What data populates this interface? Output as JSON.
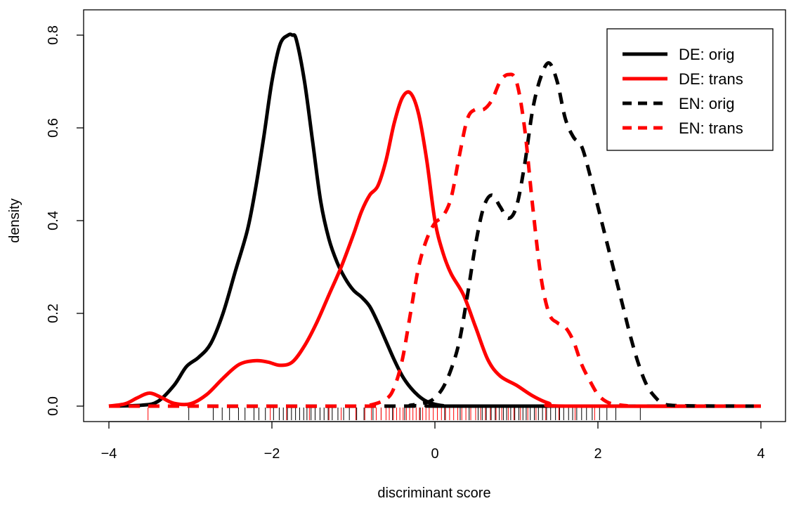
{
  "chart_data": {
    "type": "line",
    "title": "",
    "xlabel": "discriminant score",
    "ylabel": "density",
    "xlim": [
      -4,
      4
    ],
    "ylim": [
      0,
      0.8
    ],
    "xticks": [
      "−4",
      "−2",
      "0",
      "2",
      "4"
    ],
    "xtick_values": [
      -4,
      -2,
      0,
      2,
      4
    ],
    "yticks": [
      "0.0",
      "0.2",
      "0.4",
      "0.6",
      "0.8"
    ],
    "ytick_values": [
      0,
      0.2,
      0.4,
      0.6,
      0.8
    ],
    "grid": false,
    "legend_position": "top-right",
    "colors": {
      "black": "#000000",
      "red": "#ff0000"
    },
    "series": [
      {
        "name": "DE: orig",
        "color": "#000000",
        "dash": "solid",
        "x": [
          -4.0,
          -3.6,
          -3.4,
          -3.2,
          -3.05,
          -2.9,
          -2.75,
          -2.6,
          -2.45,
          -2.3,
          -2.2,
          -2.1,
          -2.0,
          -1.9,
          -1.8,
          -1.75,
          -1.7,
          -1.6,
          -1.5,
          -1.4,
          -1.3,
          -1.2,
          -1.1,
          -1.0,
          -0.9,
          -0.8,
          -0.7,
          -0.6,
          -0.5,
          -0.4,
          -0.3,
          -0.2,
          -0.1,
          0.0,
          0.1,
          0.2,
          4.0
        ],
        "y": [
          0.0,
          0.002,
          0.01,
          0.045,
          0.085,
          0.105,
          0.135,
          0.2,
          0.29,
          0.38,
          0.47,
          0.58,
          0.7,
          0.78,
          0.8,
          0.8,
          0.79,
          0.7,
          0.57,
          0.44,
          0.36,
          0.31,
          0.275,
          0.25,
          0.235,
          0.215,
          0.18,
          0.14,
          0.1,
          0.065,
          0.04,
          0.022,
          0.01,
          0.004,
          0.001,
          0.0,
          0.0
        ]
      },
      {
        "name": "DE: trans",
        "color": "#ff0000",
        "dash": "solid",
        "x": [
          -4.0,
          -3.8,
          -3.65,
          -3.5,
          -3.35,
          -3.2,
          -3.0,
          -2.8,
          -2.6,
          -2.4,
          -2.2,
          -2.05,
          -1.9,
          -1.75,
          -1.6,
          -1.45,
          -1.3,
          -1.15,
          -1.0,
          -0.9,
          -0.8,
          -0.7,
          -0.6,
          -0.5,
          -0.4,
          -0.3,
          -0.2,
          -0.1,
          0.0,
          0.1,
          0.2,
          0.35,
          0.5,
          0.65,
          0.8,
          1.0,
          1.2,
          1.4,
          1.6,
          4.0
        ],
        "y": [
          0.0,
          0.005,
          0.018,
          0.028,
          0.018,
          0.006,
          0.005,
          0.025,
          0.06,
          0.09,
          0.098,
          0.095,
          0.088,
          0.095,
          0.13,
          0.18,
          0.24,
          0.3,
          0.37,
          0.42,
          0.455,
          0.475,
          0.53,
          0.61,
          0.665,
          0.675,
          0.63,
          0.53,
          0.4,
          0.33,
          0.285,
          0.24,
          0.17,
          0.1,
          0.065,
          0.045,
          0.022,
          0.006,
          0.0,
          0.0
        ]
      },
      {
        "name": "EN: orig",
        "color": "#000000",
        "dash": "dashed",
        "x": [
          -4.0,
          -0.5,
          -0.3,
          -0.1,
          0.0,
          0.1,
          0.2,
          0.3,
          0.4,
          0.5,
          0.6,
          0.7,
          0.8,
          0.9,
          1.0,
          1.1,
          1.2,
          1.3,
          1.4,
          1.5,
          1.6,
          1.7,
          1.8,
          1.9,
          2.0,
          2.1,
          2.2,
          2.3,
          2.4,
          2.5,
          2.6,
          2.7,
          2.8,
          3.0,
          4.0
        ],
        "y": [
          0.0,
          0.0,
          0.002,
          0.008,
          0.018,
          0.04,
          0.08,
          0.14,
          0.24,
          0.35,
          0.43,
          0.455,
          0.43,
          0.405,
          0.43,
          0.52,
          0.64,
          0.71,
          0.74,
          0.7,
          0.62,
          0.58,
          0.56,
          0.5,
          0.43,
          0.36,
          0.29,
          0.22,
          0.15,
          0.09,
          0.045,
          0.02,
          0.006,
          0.001,
          0.0
        ]
      },
      {
        "name": "EN: trans",
        "color": "#ff0000",
        "dash": "dashed",
        "x": [
          -4.0,
          -1.0,
          -0.8,
          -0.6,
          -0.5,
          -0.4,
          -0.3,
          -0.2,
          -0.1,
          0.0,
          0.1,
          0.2,
          0.3,
          0.4,
          0.5,
          0.6,
          0.7,
          0.8,
          0.9,
          1.0,
          1.1,
          1.2,
          1.3,
          1.4,
          1.5,
          1.6,
          1.7,
          1.8,
          1.9,
          2.0,
          2.1,
          2.2,
          2.35,
          2.5,
          4.0
        ],
        "y": [
          0.0,
          0.0,
          0.002,
          0.015,
          0.04,
          0.1,
          0.2,
          0.3,
          0.36,
          0.395,
          0.41,
          0.45,
          0.54,
          0.62,
          0.64,
          0.64,
          0.66,
          0.7,
          0.715,
          0.7,
          0.6,
          0.43,
          0.28,
          0.2,
          0.18,
          0.17,
          0.14,
          0.09,
          0.055,
          0.025,
          0.01,
          0.004,
          0.001,
          0.0,
          0.0
        ]
      }
    ],
    "rug": {
      "black": [
        -3.02,
        -2.72,
        -2.61,
        -2.52,
        -2.41,
        -2.33,
        -2.22,
        -2.16,
        -2.08,
        -1.98,
        -1.91,
        -1.86,
        -1.81,
        -1.76,
        -1.71,
        -1.66,
        -1.61,
        -1.57,
        -1.52,
        -1.47,
        -1.41,
        -1.36,
        -1.31,
        -1.26,
        -1.19,
        -1.12,
        -1.05,
        -0.96,
        -0.87,
        -0.76,
        -0.66,
        -0.52,
        -0.37,
        -0.18,
        0.12,
        0.31,
        0.42,
        0.53,
        0.58,
        0.63,
        0.69,
        0.74,
        0.79,
        0.84,
        0.88,
        0.93,
        0.98,
        1.03,
        1.08,
        1.12,
        1.17,
        1.22,
        1.27,
        1.32,
        1.37,
        1.42,
        1.48,
        1.53,
        1.58,
        1.64,
        1.69,
        1.74,
        1.8,
        1.86,
        1.93,
        2.02,
        2.11,
        2.22,
        2.52
      ],
      "red": [
        -3.52,
        -2.02,
        -1.82,
        -1.54,
        -1.3,
        -1.15,
        -0.97,
        -0.86,
        -0.78,
        -0.72,
        -0.66,
        -0.6,
        -0.56,
        -0.51,
        -0.47,
        -0.43,
        -0.39,
        -0.35,
        -0.31,
        -0.27,
        -0.23,
        -0.19,
        -0.15,
        -0.11,
        -0.07,
        -0.02,
        0.03,
        0.08,
        0.13,
        0.18,
        0.23,
        0.28,
        0.33,
        0.38,
        0.44,
        0.5,
        0.56,
        0.62,
        0.68,
        0.75,
        0.82,
        0.9,
        0.97,
        1.05,
        1.14,
        1.24,
        1.36,
        1.52,
        1.72,
        1.96
      ]
    }
  }
}
